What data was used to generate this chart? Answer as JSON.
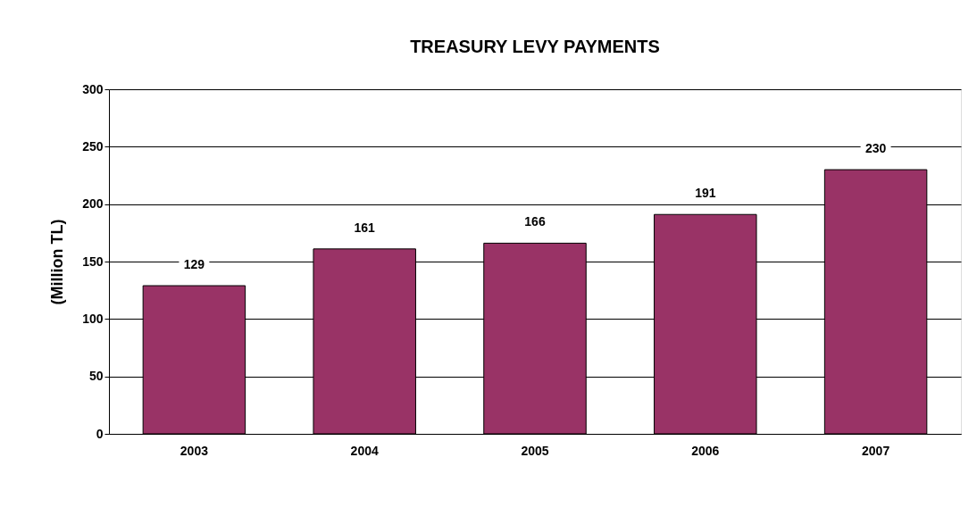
{
  "chart_data": {
    "type": "bar",
    "title": "TREASURY LEVY PAYMENTS",
    "ylabel": "(Million TL)",
    "categories": [
      "2003",
      "2004",
      "2005",
      "2006",
      "2007"
    ],
    "values": [
      129,
      161,
      166,
      191,
      230
    ],
    "color": "#993366",
    "ylim": [
      0,
      300
    ],
    "yticks": [
      0,
      50,
      100,
      150,
      200,
      250,
      300
    ],
    "grid": "y",
    "data_labels": true
  }
}
